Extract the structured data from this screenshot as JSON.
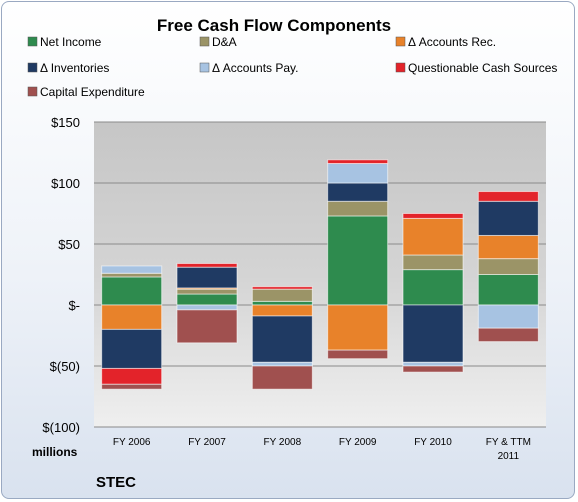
{
  "chart_data": {
    "type": "bar",
    "stacked": true,
    "title": "Free Cash Flow Components",
    "categories": [
      "FY 2006",
      "FY 2007",
      "FY 2008",
      "FY 2009",
      "FY 2010",
      "FY & TTM 2011"
    ],
    "y_ticks": [
      "$150",
      "$100",
      "$50",
      "$-",
      "$(50)",
      "$(100)"
    ],
    "y_tick_values": [
      150,
      100,
      50,
      0,
      -50,
      -100
    ],
    "ylim": [
      -100,
      150
    ],
    "unit_label": "millions",
    "company": "STEC",
    "grid": true,
    "legend_position": "top",
    "series": [
      {
        "name": "Net Income",
        "color": "#2e8b4e",
        "values": [
          23,
          9,
          3,
          73,
          29,
          25
        ]
      },
      {
        "name": "D&A",
        "color": "#9b9467",
        "values": [
          3,
          4,
          10,
          12,
          12,
          13
        ]
      },
      {
        "name": "Δ Accounts Rec.",
        "color": "#e8822a",
        "values": [
          -20,
          1,
          -9,
          -37,
          30,
          19
        ]
      },
      {
        "name": "Δ Inventories",
        "color": "#1f3a63",
        "values": [
          -32,
          17,
          -38,
          15,
          -47,
          28
        ]
      },
      {
        "name": "Δ Accounts Pay.",
        "color": "#a7c3e2",
        "values": [
          6,
          -4,
          -3,
          16,
          -3,
          -19
        ]
      },
      {
        "name": "Questionable Cash Sources",
        "color": "#e3232a",
        "values": [
          -13,
          3,
          2,
          3,
          4,
          8
        ]
      },
      {
        "name": "Capital Expenditure",
        "color": "#a0504f",
        "values": [
          -4,
          -27,
          -19,
          -7,
          -5,
          -11
        ]
      }
    ]
  }
}
